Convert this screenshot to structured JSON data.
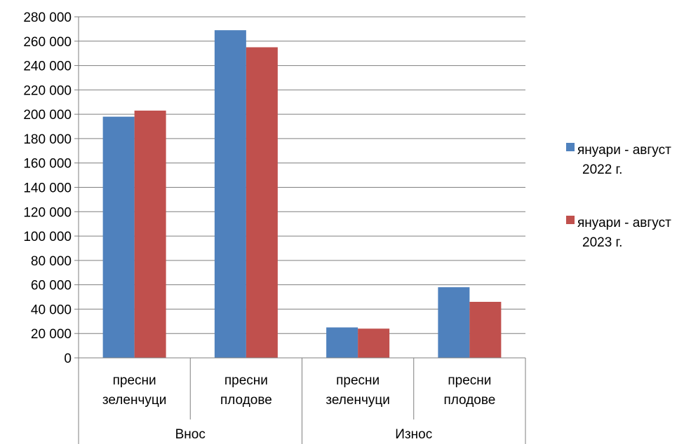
{
  "chart_data": {
    "type": "bar",
    "groups": [
      {
        "label": "Внос",
        "categories": [
          {
            "lines": [
              "пресни",
              "зеленчуци"
            ]
          },
          {
            "lines": [
              "пресни",
              "плодове"
            ]
          }
        ]
      },
      {
        "label": "Износ",
        "categories": [
          {
            "lines": [
              "пресни",
              "зеленчуци"
            ]
          },
          {
            "lines": [
              "пресни",
              "плодове"
            ]
          }
        ]
      }
    ],
    "series": [
      {
        "name_lines": [
          "януари - август",
          "2022 г."
        ],
        "color": "#4F81BD",
        "values": [
          198000,
          269000,
          25000,
          58000
        ]
      },
      {
        "name_lines": [
          "януари - август",
          "2023 г."
        ],
        "color": "#C0504D",
        "values": [
          203000,
          255000,
          24000,
          46000
        ]
      }
    ],
    "ylim": [
      0,
      280000
    ],
    "ytick_step": 20000,
    "ytick_labels": [
      "0",
      "20 000",
      "40 000",
      "60 000",
      "80 000",
      "100 000",
      "120 000",
      "140 000",
      "160 000",
      "180 000",
      "200 000",
      "220 000",
      "240 000",
      "260 000",
      "280 000"
    ],
    "grid": true,
    "legend_position": "right"
  }
}
